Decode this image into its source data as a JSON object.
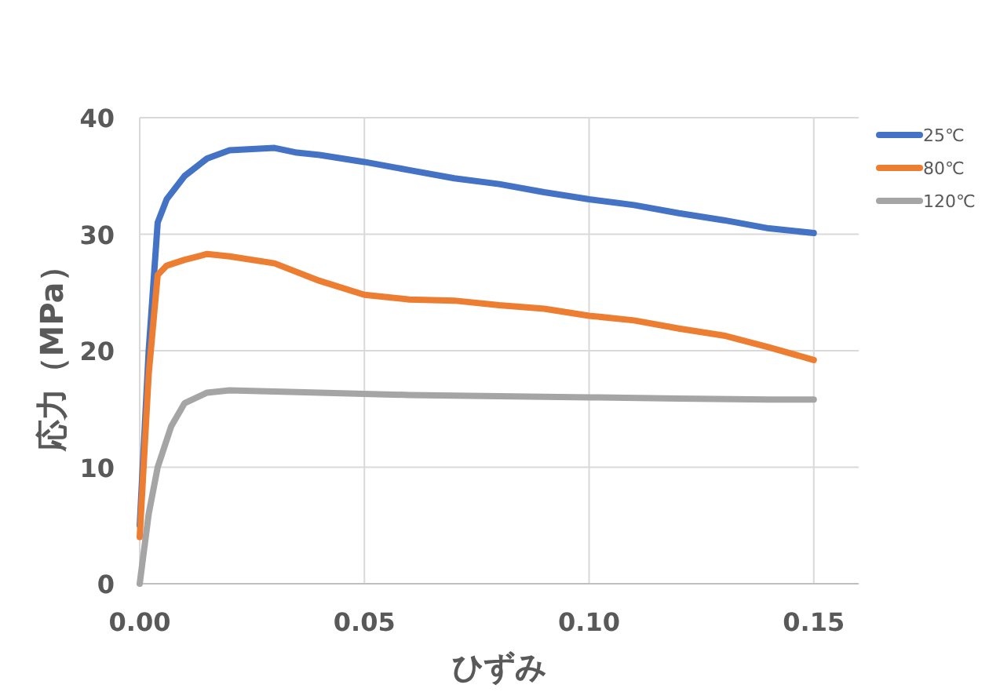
{
  "chart_data": {
    "type": "line",
    "xlabel": "ひずみ",
    "ylabel": "応力（MPa）",
    "xlim": [
      0,
      0.16
    ],
    "xticks": [
      {
        "value": 0,
        "label": "0.00"
      },
      {
        "value": 0.05,
        "label": "0.05"
      },
      {
        "value": 0.1,
        "label": "0.10"
      },
      {
        "value": 0.15,
        "label": "0.15"
      }
    ],
    "ylim": [
      0,
      40
    ],
    "yticks": [
      0,
      10,
      20,
      30,
      40
    ],
    "grid": true,
    "legend": "top right",
    "marker": "none",
    "line_style": "solid",
    "series": [
      {
        "name": "25℃",
        "color": "#4472c4",
        "x": [
          0,
          0.002,
          0.004,
          0.006,
          0.01,
          0.015,
          0.02,
          0.03,
          0.035,
          0.04,
          0.05,
          0.06,
          0.07,
          0.08,
          0.09,
          0.1,
          0.11,
          0.12,
          0.13,
          0.14,
          0.15
        ],
        "values": [
          5,
          20,
          31,
          33,
          35,
          36.5,
          37.2,
          37.4,
          37,
          36.8,
          36.2,
          35.5,
          34.8,
          34.3,
          33.6,
          33,
          32.5,
          31.8,
          31.2,
          30.5,
          30.1
        ]
      },
      {
        "name": "80℃",
        "color": "#ed7d31",
        "x": [
          0,
          0.002,
          0.004,
          0.006,
          0.01,
          0.015,
          0.02,
          0.03,
          0.04,
          0.05,
          0.06,
          0.07,
          0.08,
          0.09,
          0.1,
          0.11,
          0.12,
          0.13,
          0.14,
          0.15
        ],
        "values": [
          4,
          18,
          26.5,
          27.3,
          27.8,
          28.3,
          28.1,
          27.5,
          26,
          24.8,
          24.4,
          24.3,
          23.9,
          23.6,
          23,
          22.6,
          21.9,
          21.3,
          20.3,
          19.2
        ]
      },
      {
        "name": "120℃",
        "color": "#a5a5a5",
        "x": [
          0,
          0.002,
          0.004,
          0.007,
          0.01,
          0.015,
          0.02,
          0.04,
          0.06,
          0.08,
          0.1,
          0.12,
          0.14,
          0.15
        ],
        "values": [
          0,
          6,
          10,
          13.5,
          15.5,
          16.4,
          16.6,
          16.4,
          16.2,
          16.1,
          16,
          15.9,
          15.8,
          15.8
        ]
      }
    ]
  }
}
